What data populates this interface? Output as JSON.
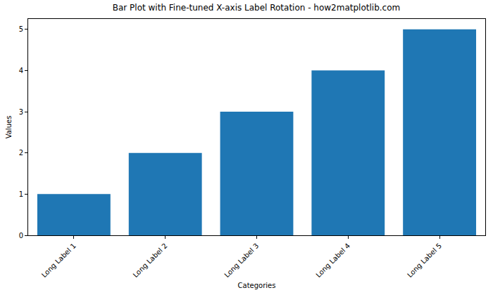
{
  "chart_data": {
    "type": "bar",
    "title": "Bar Plot with Fine-tuned X-axis Label Rotation - how2matplotlib.com",
    "x_label": "Categories",
    "y_label": "Values",
    "categories": [
      "Long Label 1",
      "Long Label 2",
      "Long Label 3",
      "Long Label 4",
      "Long Label 5"
    ],
    "values": [
      1,
      2,
      3,
      4,
      5
    ],
    "color": "#1f77b4",
    "ylim": [
      0,
      5.25
    ],
    "yticks": [
      0,
      1,
      2,
      3,
      4,
      5
    ],
    "grid": false
  }
}
